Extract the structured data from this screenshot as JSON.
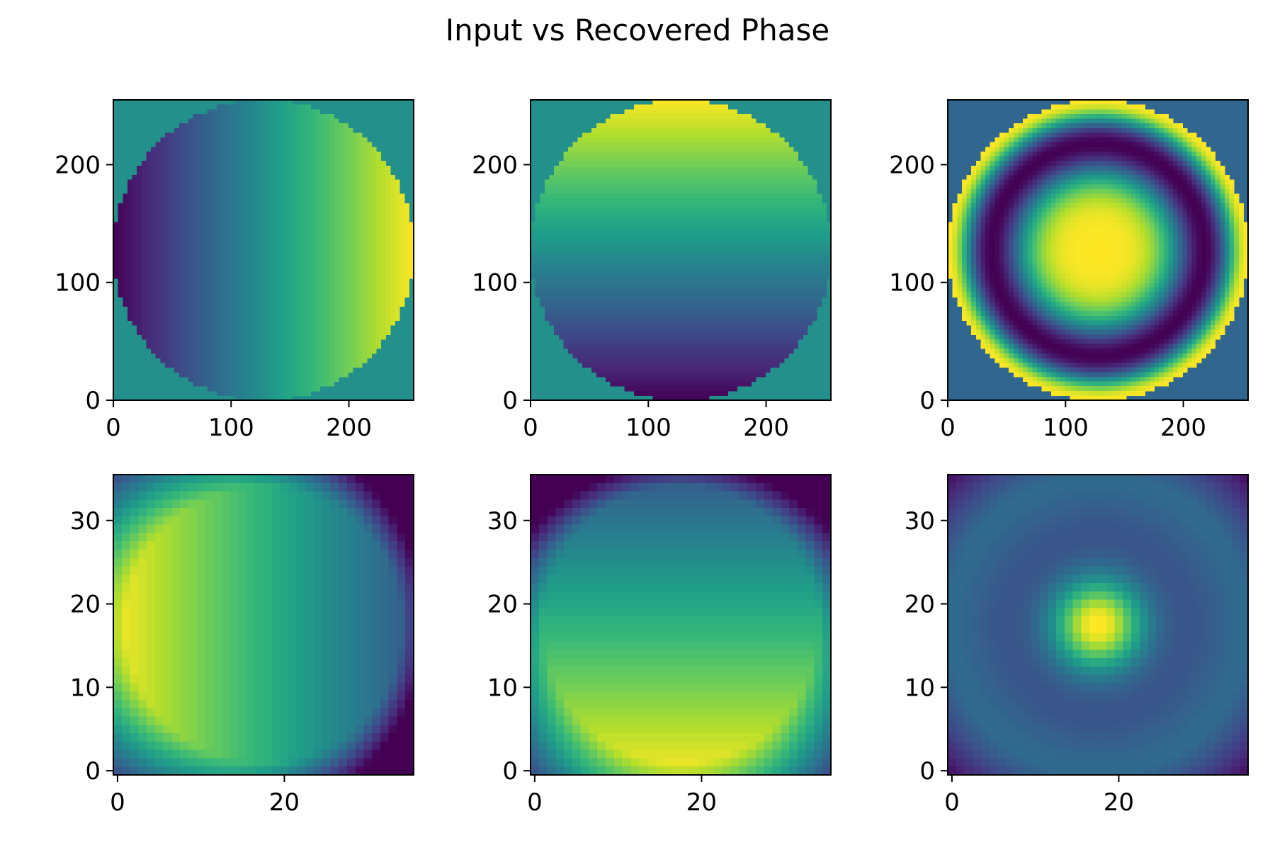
{
  "title": "Input vs Recovered Phase",
  "colormap": "viridis",
  "chart_data": [
    {
      "type": "heatmap",
      "row": 0,
      "col": 0,
      "pattern": "tilt-x",
      "grid_size": 256,
      "origin": "lower",
      "masked": true,
      "xlim": [
        0,
        255
      ],
      "ylim": [
        0,
        255
      ],
      "xticks": [
        0,
        100,
        200
      ],
      "yticks": [
        0,
        100,
        200
      ],
      "xlabel": "",
      "ylabel": "",
      "legend": false
    },
    {
      "type": "heatmap",
      "row": 0,
      "col": 1,
      "pattern": "tilt-y",
      "grid_size": 256,
      "origin": "lower",
      "masked": true,
      "xlim": [
        0,
        255
      ],
      "ylim": [
        0,
        255
      ],
      "xticks": [
        0,
        100,
        200
      ],
      "yticks": [
        0,
        100,
        200
      ],
      "xlabel": "",
      "ylabel": "",
      "legend": false
    },
    {
      "type": "heatmap",
      "row": 0,
      "col": 2,
      "pattern": "rings",
      "grid_size": 256,
      "origin": "lower",
      "masked": true,
      "xlim": [
        0,
        255
      ],
      "ylim": [
        0,
        255
      ],
      "xticks": [
        0,
        100,
        200
      ],
      "yticks": [
        0,
        100,
        200
      ],
      "xlabel": "",
      "ylabel": "",
      "legend": false
    },
    {
      "type": "heatmap",
      "row": 1,
      "col": 0,
      "pattern": "recovered-tilt-x",
      "grid_size": 36,
      "origin": "lower",
      "masked": false,
      "xlim": [
        -0.5,
        35.5
      ],
      "ylim": [
        -0.5,
        35.5
      ],
      "xticks": [
        0,
        20
      ],
      "yticks": [
        0,
        10,
        20,
        30
      ],
      "xlabel": "",
      "ylabel": "",
      "legend": false
    },
    {
      "type": "heatmap",
      "row": 1,
      "col": 1,
      "pattern": "recovered-tilt-y",
      "grid_size": 36,
      "origin": "lower",
      "masked": false,
      "xlim": [
        -0.5,
        35.5
      ],
      "ylim": [
        -0.5,
        35.5
      ],
      "xticks": [
        0,
        20
      ],
      "yticks": [
        0,
        10,
        20,
        30
      ],
      "xlabel": "",
      "ylabel": "",
      "legend": false
    },
    {
      "type": "heatmap",
      "row": 1,
      "col": 2,
      "pattern": "recovered-rings",
      "grid_size": 36,
      "origin": "lower",
      "masked": false,
      "xlim": [
        -0.5,
        35.5
      ],
      "ylim": [
        -0.5,
        35.5
      ],
      "xticks": [
        0,
        20
      ],
      "yticks": [
        0,
        10,
        20,
        30
      ],
      "xlabel": "",
      "ylabel": "",
      "legend": false
    }
  ]
}
